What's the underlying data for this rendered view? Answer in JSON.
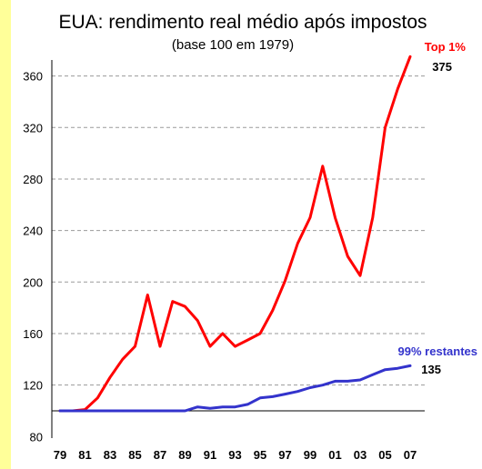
{
  "chart_data": {
    "type": "line",
    "title": "EUA: rendimento real médio após impostos",
    "subtitle": "(base 100 em 1979)",
    "x": [
      "79",
      "80",
      "81",
      "82",
      "83",
      "84",
      "85",
      "86",
      "87",
      "88",
      "89",
      "90",
      "91",
      "92",
      "93",
      "94",
      "95",
      "96",
      "97",
      "98",
      "99",
      "00",
      "01",
      "02",
      "03",
      "04",
      "05",
      "06",
      "07"
    ],
    "xtick_labels": [
      "79",
      "81",
      "83",
      "85",
      "87",
      "89",
      "91",
      "93",
      "95",
      "97",
      "99",
      "01",
      "03",
      "05",
      "07"
    ],
    "yticks": [
      80,
      120,
      160,
      200,
      240,
      280,
      320,
      360
    ],
    "ylim": [
      80,
      380
    ],
    "grid": true,
    "series": [
      {
        "name": "Top 1%",
        "color": "#ff0000",
        "end_value_label": "375",
        "values": [
          100,
          100,
          101,
          110,
          126,
          140,
          150,
          190,
          150,
          185,
          181,
          170,
          150,
          160,
          150,
          155,
          160,
          178,
          201,
          230,
          250,
          290,
          250,
          220,
          205,
          250,
          320,
          350,
          375
        ]
      },
      {
        "name": "99% restantes",
        "color": "#3333cc",
        "end_value_label": "135",
        "values": [
          100,
          100,
          100,
          100,
          100,
          100,
          100,
          100,
          100,
          100,
          100,
          103,
          102,
          103,
          103,
          105,
          110,
          111,
          113,
          115,
          118,
          120,
          123,
          123,
          124,
          128,
          132,
          133,
          135
        ]
      }
    ]
  }
}
